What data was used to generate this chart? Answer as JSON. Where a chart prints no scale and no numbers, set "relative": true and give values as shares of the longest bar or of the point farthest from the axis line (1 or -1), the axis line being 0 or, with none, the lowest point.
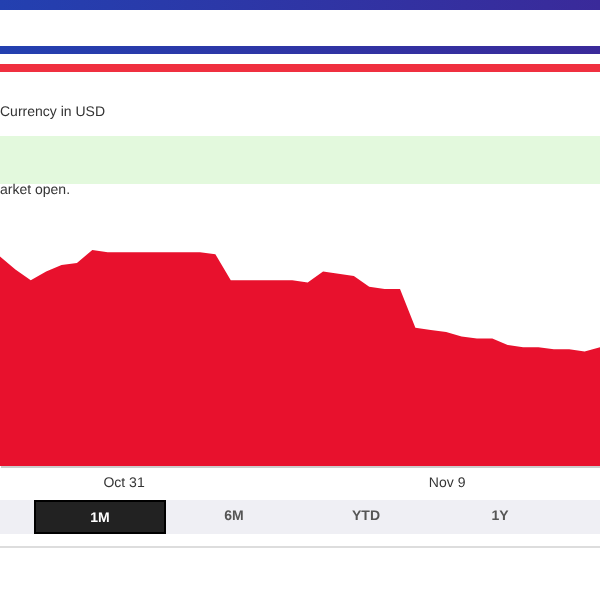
{
  "chart_data": {
    "type": "area",
    "relative": true,
    "color": "#e8112d",
    "categories": [
      null,
      null,
      null,
      null,
      null,
      null,
      null,
      null,
      "Oct 31",
      null,
      null,
      null,
      null,
      null,
      null,
      null,
      null,
      null,
      null,
      null,
      null,
      null,
      null,
      null,
      null,
      null,
      null,
      null,
      null,
      "Nov 9",
      null,
      null,
      null,
      null,
      null,
      null,
      null,
      null,
      null,
      null
    ],
    "values": [
      0.97,
      0.91,
      0.86,
      0.9,
      0.93,
      0.94,
      1,
      0.99,
      0.99,
      0.99,
      0.99,
      0.99,
      0.99,
      0.99,
      0.98,
      0.86,
      0.86,
      0.86,
      0.86,
      0.86,
      0.85,
      0.9,
      0.89,
      0.88,
      0.83,
      0.82,
      0.82,
      0.64,
      0.63,
      0.62,
      0.6,
      0.59,
      0.59,
      0.56,
      0.55,
      0.55,
      0.54,
      0.54,
      0.53,
      0.55
    ],
    "annotations": [
      "Currency in USD",
      "arket open.",
      "1M",
      "6M",
      "YTD",
      "1Y"
    ]
  }
}
